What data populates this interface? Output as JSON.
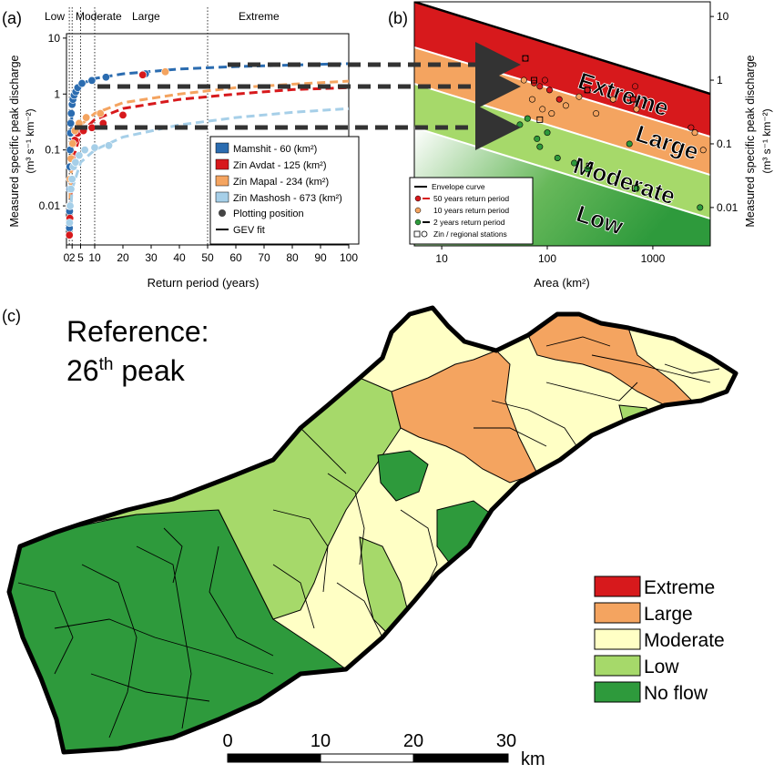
{
  "panel_labels": {
    "a": "(a)",
    "b": "(b)",
    "c": "(c)"
  },
  "colors": {
    "mamshit": "#2b6cb0",
    "zin_avdat": "#d7191c",
    "zin_mapal": "#f4a460",
    "zin_mashosh": "#a6cfe8",
    "extreme": "#d7191c",
    "large": "#f4a460",
    "moderate": "#ffffc5",
    "low": "#a6d96a",
    "no_flow": "#2e9a3c"
  },
  "chart_data": [
    {
      "type": "scatter",
      "panel": "a",
      "xlabel": "Return period (years)",
      "ylabel_line1": "Measured specific peak discharge",
      "ylabel_line2": "(m³ s⁻¹ km⁻²)",
      "x_ticks": [
        "0",
        "2",
        "5",
        "10",
        "20",
        "30",
        "40",
        "50",
        "60",
        "70",
        "80",
        "90",
        "100"
      ],
      "y_ticks": [
        "0.01",
        "0.1",
        "1",
        "10"
      ],
      "xlim": [
        0,
        100
      ],
      "ylim": [
        0.002,
        12
      ],
      "y_scale": "log",
      "class_boundaries": [
        2,
        5,
        10,
        50
      ],
      "class_labels": [
        "Low",
        "Moderate",
        "Large",
        "Extreme"
      ],
      "legend": {
        "items": [
          "Mamshit - 60 (km²)",
          "Zin Avdat - 125 (km²)",
          "Zin Mapal - 234 (km²)",
          "Zin Mashosh - 673 (km²)"
        ],
        "marker_item": "Plotting position",
        "line_item": "GEV fit"
      },
      "series": [
        {
          "key": "mamshit",
          "name": "Mamshit - 60 (km²)",
          "points": [
            [
              1.05,
              0.004
            ],
            [
              1.1,
              0.008
            ],
            [
              1.15,
              0.02
            ],
            [
              1.2,
              0.05
            ],
            [
              1.3,
              0.1
            ],
            [
              1.4,
              0.2
            ],
            [
              1.5,
              0.3
            ],
            [
              1.7,
              0.45
            ],
            [
              2.0,
              0.65
            ],
            [
              2.3,
              0.8
            ],
            [
              2.7,
              0.95
            ],
            [
              3.3,
              1.1
            ],
            [
              4.0,
              1.3
            ],
            [
              5.5,
              1.55
            ],
            [
              9.0,
              1.75
            ],
            [
              14,
              2.0
            ],
            [
              28,
              2.3
            ]
          ],
          "fit": [
            [
              1.05,
              0.005
            ],
            [
              2,
              0.8
            ],
            [
              5,
              1.5
            ],
            [
              10,
              1.9
            ],
            [
              20,
              2.3
            ],
            [
              40,
              2.8
            ],
            [
              60,
              3.1
            ],
            [
              80,
              3.3
            ],
            [
              100,
              3.5
            ]
          ]
        },
        {
          "key": "zin_avdat",
          "name": "Zin Avdat - 125 (km²)",
          "points": [
            [
              1.05,
              0.003
            ],
            [
              1.2,
              0.006
            ],
            [
              1.5,
              0.03
            ],
            [
              2.0,
              0.07
            ],
            [
              3.0,
              0.15
            ],
            [
              4.0,
              0.2
            ],
            [
              6.0,
              0.22
            ],
            [
              9,
              0.25
            ],
            [
              13,
              0.3
            ],
            [
              20,
              0.42
            ],
            [
              27,
              2.2
            ]
          ],
          "fit": [
            [
              1.05,
              0.003
            ],
            [
              2,
              0.06
            ],
            [
              5,
              0.2
            ],
            [
              10,
              0.35
            ],
            [
              20,
              0.55
            ],
            [
              40,
              0.8
            ],
            [
              60,
              1.0
            ],
            [
              80,
              1.2
            ],
            [
              100,
              1.3
            ]
          ]
        },
        {
          "key": "zin_mapal",
          "name": "Zin Mapal - 234 (km²)",
          "points": [
            [
              1.1,
              0.01
            ],
            [
              1.3,
              0.03
            ],
            [
              1.6,
              0.07
            ],
            [
              2.2,
              0.13
            ],
            [
              3.0,
              0.22
            ],
            [
              4.5,
              0.3
            ],
            [
              7,
              0.38
            ],
            [
              12,
              0.45
            ],
            [
              35,
              2.5
            ]
          ],
          "fit": [
            [
              1.05,
              0.008
            ],
            [
              2,
              0.1
            ],
            [
              5,
              0.28
            ],
            [
              10,
              0.45
            ],
            [
              20,
              0.7
            ],
            [
              40,
              1.0
            ],
            [
              60,
              1.3
            ],
            [
              80,
              1.5
            ],
            [
              100,
              1.7
            ]
          ]
        },
        {
          "key": "zin_mashosh",
          "name": "Zin Mashosh - 673 (km²)",
          "points": [
            [
              1.1,
              0.005
            ],
            [
              1.3,
              0.01
            ],
            [
              1.6,
              0.02
            ],
            [
              2.0,
              0.03
            ],
            [
              2.5,
              0.05
            ],
            [
              3.2,
              0.06
            ],
            [
              4.5,
              0.08
            ],
            [
              6.5,
              0.1
            ],
            [
              10,
              0.11
            ],
            [
              15,
              0.12
            ]
          ],
          "fit": [
            [
              1.05,
              0.004
            ],
            [
              2,
              0.02
            ],
            [
              5,
              0.06
            ],
            [
              10,
              0.1
            ],
            [
              20,
              0.17
            ],
            [
              40,
              0.28
            ],
            [
              60,
              0.38
            ],
            [
              80,
              0.47
            ],
            [
              100,
              0.55
            ]
          ]
        }
      ]
    },
    {
      "type": "scatter",
      "panel": "b",
      "xlabel": "Area (km²)",
      "ylabel_line1": "Measured specific peak discharge",
      "ylabel_line2": "(m³ s⁻¹ km⁻²)",
      "x_ticks": [
        "10",
        "100",
        "1000"
      ],
      "y_ticks": [
        "0.01",
        "0.1",
        "1",
        "10"
      ],
      "x_scale": "log",
      "y_scale": "log",
      "class_labels": [
        "Extreme",
        "Large",
        "Moderate",
        "Low"
      ],
      "legend": {
        "items": [
          "Envelope curve",
          "50 years return period",
          "10 years return period",
          "2 years return period",
          "Zin / regional stations"
        ]
      },
      "points_50yr": [
        [
          62,
          2.2
        ],
        [
          75,
          0.9
        ],
        [
          85,
          0.8
        ],
        [
          95,
          1.0
        ],
        [
          105,
          0.7
        ],
        [
          130,
          0.5
        ],
        [
          240,
          0.7
        ],
        [
          650,
          0.5
        ],
        [
          680,
          0.8
        ],
        [
          2300,
          0.18
        ]
      ],
      "points_10yr": [
        [
          60,
          1.0
        ],
        [
          72,
          0.5
        ],
        [
          90,
          0.35
        ],
        [
          110,
          0.3
        ],
        [
          150,
          0.4
        ],
        [
          200,
          0.55
        ],
        [
          290,
          0.3
        ],
        [
          420,
          0.5
        ],
        [
          700,
          0.35
        ],
        [
          2500,
          0.15
        ],
        [
          3000,
          0.08
        ]
      ],
      "points_2yr": [
        [
          55,
          0.2
        ],
        [
          65,
          0.25
        ],
        [
          80,
          0.12
        ],
        [
          85,
          0.09
        ],
        [
          100,
          0.15
        ],
        [
          125,
          0.06
        ],
        [
          180,
          0.05
        ],
        [
          240,
          0.04
        ],
        [
          600,
          0.1
        ],
        [
          700,
          0.02
        ],
        [
          2800,
          0.01
        ]
      ],
      "stations": [
        [
          62,
          2.2
        ],
        [
          75,
          1.0
        ],
        [
          85,
          0.24
        ],
        [
          240,
          0.7
        ],
        [
          250,
          0.045
        ],
        [
          650,
          0.5
        ],
        [
          680,
          0.02
        ]
      ]
    }
  ],
  "map": {
    "title_line1": "Reference:",
    "title_line2_num": "26",
    "title_line2_sup": "th",
    "title_line2_rest": " peak",
    "legend": [
      "Extreme",
      "Large",
      "Moderate",
      "Low",
      "No flow"
    ],
    "scale_labels": [
      "0",
      "10",
      "20",
      "30"
    ],
    "scale_unit": "km"
  }
}
